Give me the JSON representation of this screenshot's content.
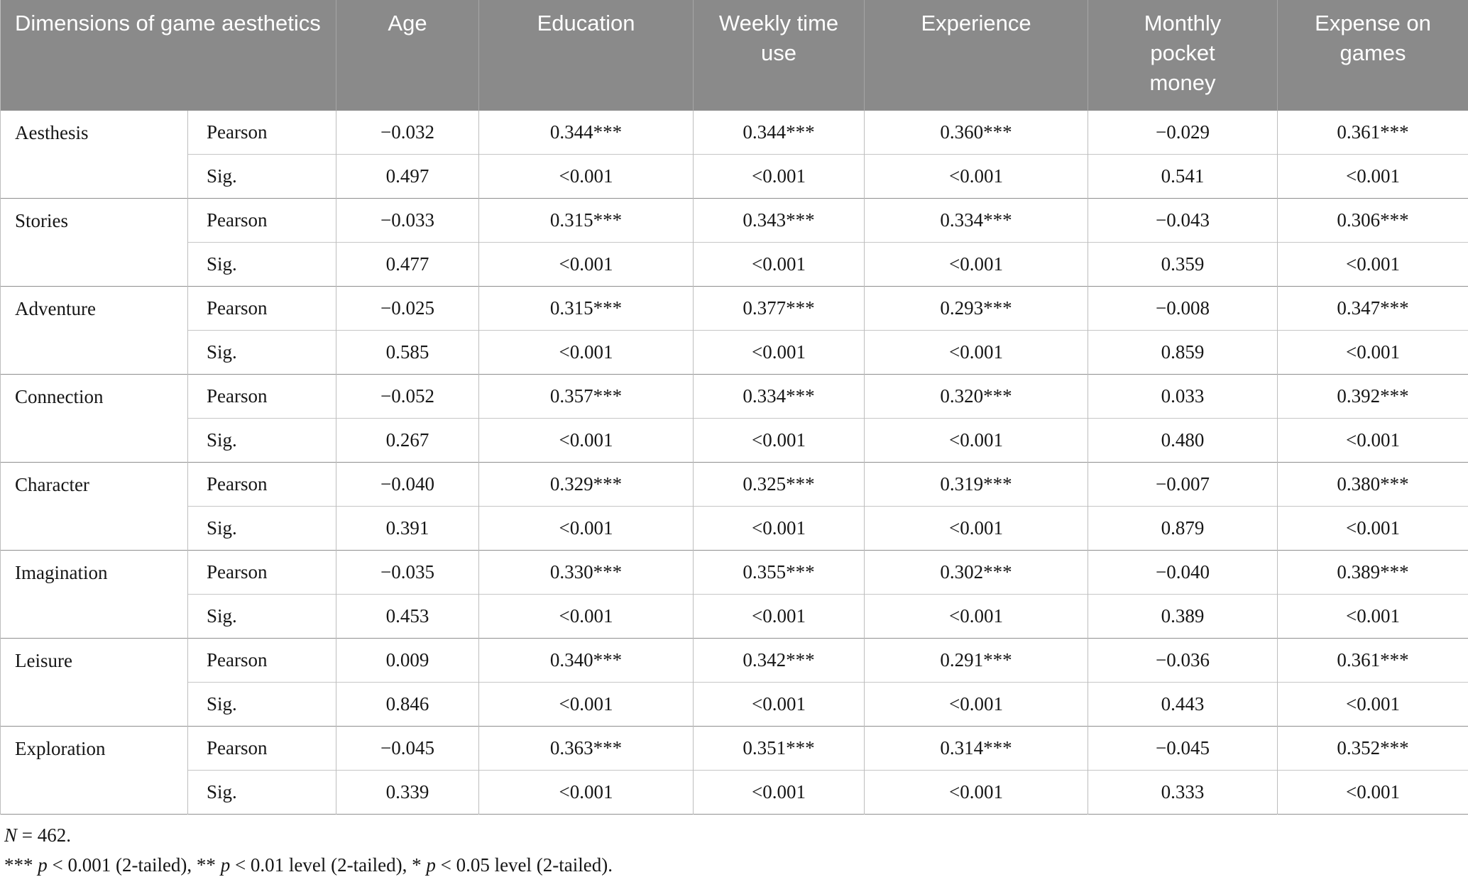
{
  "colors": {
    "header_bg": "#8a8a8a",
    "header_text": "#ffffff",
    "group_border": "#8f8f8f",
    "inner_border": "#c6c6c6"
  },
  "table": {
    "header": {
      "dimension_col": "Dimensions of game aesthetics",
      "columns": [
        "Age",
        "Education",
        "Weekly time use",
        "Experience",
        "Monthly pocket money",
        "Expense on games"
      ]
    },
    "row_labels": {
      "pearson": "Pearson",
      "sig": "Sig."
    },
    "groups": [
      {
        "dimension": "Aesthesis",
        "pearson": [
          "−0.032",
          "0.344***",
          "0.344***",
          "0.360***",
          "−0.029",
          "0.361***"
        ],
        "sig": [
          "0.497",
          "<0.001",
          "<0.001",
          "<0.001",
          "0.541",
          "<0.001"
        ]
      },
      {
        "dimension": "Stories",
        "pearson": [
          "−0.033",
          "0.315***",
          "0.343***",
          "0.334***",
          "−0.043",
          "0.306***"
        ],
        "sig": [
          "0.477",
          "<0.001",
          "<0.001",
          "<0.001",
          "0.359",
          "<0.001"
        ]
      },
      {
        "dimension": "Adventure",
        "pearson": [
          "−0.025",
          "0.315***",
          "0.377***",
          "0.293***",
          "−0.008",
          "0.347***"
        ],
        "sig": [
          "0.585",
          "<0.001",
          "<0.001",
          "<0.001",
          "0.859",
          "<0.001"
        ]
      },
      {
        "dimension": "Connection",
        "pearson": [
          "−0.052",
          "0.357***",
          "0.334***",
          "0.320***",
          "0.033",
          "0.392***"
        ],
        "sig": [
          "0.267",
          "<0.001",
          "<0.001",
          "<0.001",
          "0.480",
          "<0.001"
        ]
      },
      {
        "dimension": "Character",
        "pearson": [
          "−0.040",
          "0.329***",
          "0.325***",
          "0.319***",
          "−0.007",
          "0.380***"
        ],
        "sig": [
          "0.391",
          "<0.001",
          "<0.001",
          "<0.001",
          "0.879",
          "<0.001"
        ]
      },
      {
        "dimension": "Imagination",
        "pearson": [
          "−0.035",
          "0.330***",
          "0.355***",
          "0.302***",
          "−0.040",
          "0.389***"
        ],
        "sig": [
          "0.453",
          "<0.001",
          "<0.001",
          "<0.001",
          "0.389",
          "<0.001"
        ]
      },
      {
        "dimension": "Leisure",
        "pearson": [
          "0.009",
          "0.340***",
          "0.342***",
          "0.291***",
          "−0.036",
          "0.361***"
        ],
        "sig": [
          "0.846",
          "<0.001",
          "<0.001",
          "<0.001",
          "0.443",
          "<0.001"
        ]
      },
      {
        "dimension": "Exploration",
        "pearson": [
          "−0.045",
          "0.363***",
          "0.351***",
          "0.314***",
          "−0.045",
          "0.352***"
        ],
        "sig": [
          "0.339",
          "<0.001",
          "<0.001",
          "<0.001",
          "0.333",
          "<0.001"
        ]
      }
    ],
    "notes": {
      "n_italic": "N",
      "n_rest": " = 462.",
      "sig_s1": "*** ",
      "sig_p1": "p",
      "sig_s2": " < 0.001 (2-tailed), ** ",
      "sig_p2": "p",
      "sig_s3": " < 0.01 level (2-tailed), * ",
      "sig_p3": "p",
      "sig_s4": " < 0.05 level (2-tailed)."
    }
  }
}
